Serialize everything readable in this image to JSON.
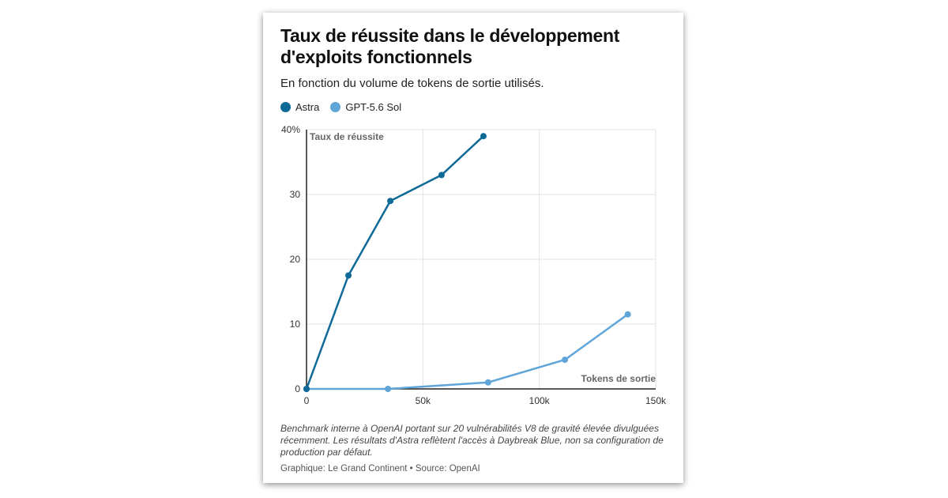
{
  "title": "Taux de réussite dans le développement d'exploits fonctionnels",
  "subtitle": "En fonction du volume de tokens de sortie utilisés.",
  "colors": {
    "astra": "#0f6a98",
    "gpt": "#5fa5d8",
    "grid": "#e3e3e3",
    "axis": "#222222"
  },
  "chart_data": {
    "type": "line",
    "ylabel": "Taux de réussite",
    "xlabel": "Tokens de sortie",
    "xlim": [
      0,
      150000
    ],
    "ylim": [
      0,
      40
    ],
    "xticks": [
      {
        "value": 0,
        "label": "0"
      },
      {
        "value": 50000,
        "label": "50k"
      },
      {
        "value": 100000,
        "label": "100k"
      },
      {
        "value": 150000,
        "label": "150k"
      }
    ],
    "yticks": [
      {
        "value": 0,
        "label": "0"
      },
      {
        "value": 10,
        "label": "10"
      },
      {
        "value": 20,
        "label": "20"
      },
      {
        "value": 30,
        "label": "30"
      },
      {
        "value": 40,
        "label": "40%"
      }
    ],
    "grid": true,
    "legend": "top-left",
    "series": [
      {
        "name": "Astra",
        "color": "#0f6a98",
        "points": [
          [
            0,
            0
          ],
          [
            18000,
            17.5
          ],
          [
            36000,
            29
          ],
          [
            58000,
            33
          ],
          [
            76000,
            39
          ]
        ]
      },
      {
        "name": "GPT-5.6 Sol",
        "color": "#5fa5d8",
        "points": [
          [
            0,
            0
          ],
          [
            35000,
            0
          ],
          [
            78000,
            1
          ],
          [
            111000,
            4.5
          ],
          [
            138000,
            11.5
          ]
        ]
      }
    ]
  },
  "footnote": "Benchmark interne à OpenAI portant sur 20 vulnérabilités V8 de gravité élevée divulguées récemment. Les résultats d'Astra reflètent l'accès à Daybreak Blue, non sa configuration de production par défaut.",
  "credit": "Graphique: Le Grand Continent • Source: OpenAI"
}
